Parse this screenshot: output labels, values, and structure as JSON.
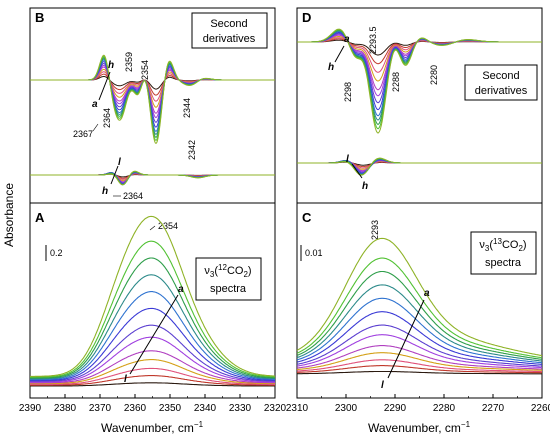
{
  "figure": {
    "ylabel": "Absorbance",
    "palette": [
      "#2b1a10",
      "#c0392b",
      "#e0507a",
      "#d4a017",
      "#b03fc0",
      "#a040e0",
      "#5b3fd0",
      "#3a3ad6",
      "#2f73d0",
      "#2c8a8a",
      "#2e9e4a",
      "#52c234",
      "#8fb327"
    ]
  },
  "chart_data": [
    {
      "panel": "A",
      "type": "line",
      "title": "ν3(12CO2) spectra",
      "title_lines": [
        "ν3(12CO2)",
        "spectra"
      ],
      "xlabel": "Wavenumber, cm-1",
      "xlim": [
        2390,
        2320
      ],
      "x_ticks": [
        2390,
        2380,
        2370,
        2360,
        2350,
        2340,
        2330,
        2320
      ],
      "scale_bar": "0.2",
      "peak_label": "2354",
      "series_count": 13,
      "spectrum": {
        "bands": [
          {
            "center": 2354,
            "width": 7,
            "weight": 1.0
          },
          {
            "center": 2364,
            "width": 6.5,
            "weight": 0.55
          },
          {
            "center": 2344,
            "width": 8,
            "weight": 0.3
          }
        ],
        "series_max": [
          0.02,
          0.06,
          0.1,
          0.15,
          0.2,
          0.28,
          0.35,
          0.45,
          0.55,
          0.65,
          0.75,
          0.85,
          1.0
        ]
      },
      "arrow": {
        "from": "l",
        "to": "a"
      }
    },
    {
      "panel": "B",
      "type": "line",
      "title": "Second derivatives",
      "title_lines": [
        "Second",
        "derivatives"
      ],
      "xlim": [
        2390,
        2320
      ],
      "annotations_upper": [
        "2367",
        "2364",
        "2359",
        "2354",
        "2344"
      ],
      "annotations_lower": [
        "2364",
        "2342"
      ],
      "arrow_upper": {
        "from": "h",
        "to": "a"
      },
      "arrow_lower": {
        "from": "l",
        "to": "h"
      }
    },
    {
      "panel": "C",
      "type": "line",
      "title": "ν3(13CO2) spectra",
      "title_lines": [
        "ν3(13CO2)",
        "spectra"
      ],
      "xlabel": "Wavenumber, cm-1",
      "xlim": [
        2310,
        2260
      ],
      "x_ticks": [
        2310,
        2300,
        2290,
        2280,
        2270,
        2260
      ],
      "scale_bar": "0.01",
      "peak_label": "2293",
      "series_count": 13,
      "spectrum": {
        "bands": [
          {
            "center": 2293,
            "width": 7,
            "weight": 1.0
          },
          {
            "center": 2285,
            "width": 16,
            "weight": 0.3
          }
        ],
        "series_max": [
          0.02,
          0.06,
          0.1,
          0.15,
          0.2,
          0.28,
          0.35,
          0.45,
          0.55,
          0.65,
          0.75,
          0.85,
          1.0
        ]
      },
      "arrow": {
        "from": "l",
        "to": "a"
      }
    },
    {
      "panel": "D",
      "type": "line",
      "title": "Second derivatives",
      "title_lines": [
        "Second",
        "derivatives"
      ],
      "xlim": [
        2310,
        2260
      ],
      "annotations_upper": [
        "2298",
        "2293.5",
        "2288",
        "2280"
      ],
      "arrow_upper": {
        "from": "h",
        "to": "a"
      },
      "arrow_lower": {
        "from": "l",
        "to": "h"
      }
    }
  ]
}
